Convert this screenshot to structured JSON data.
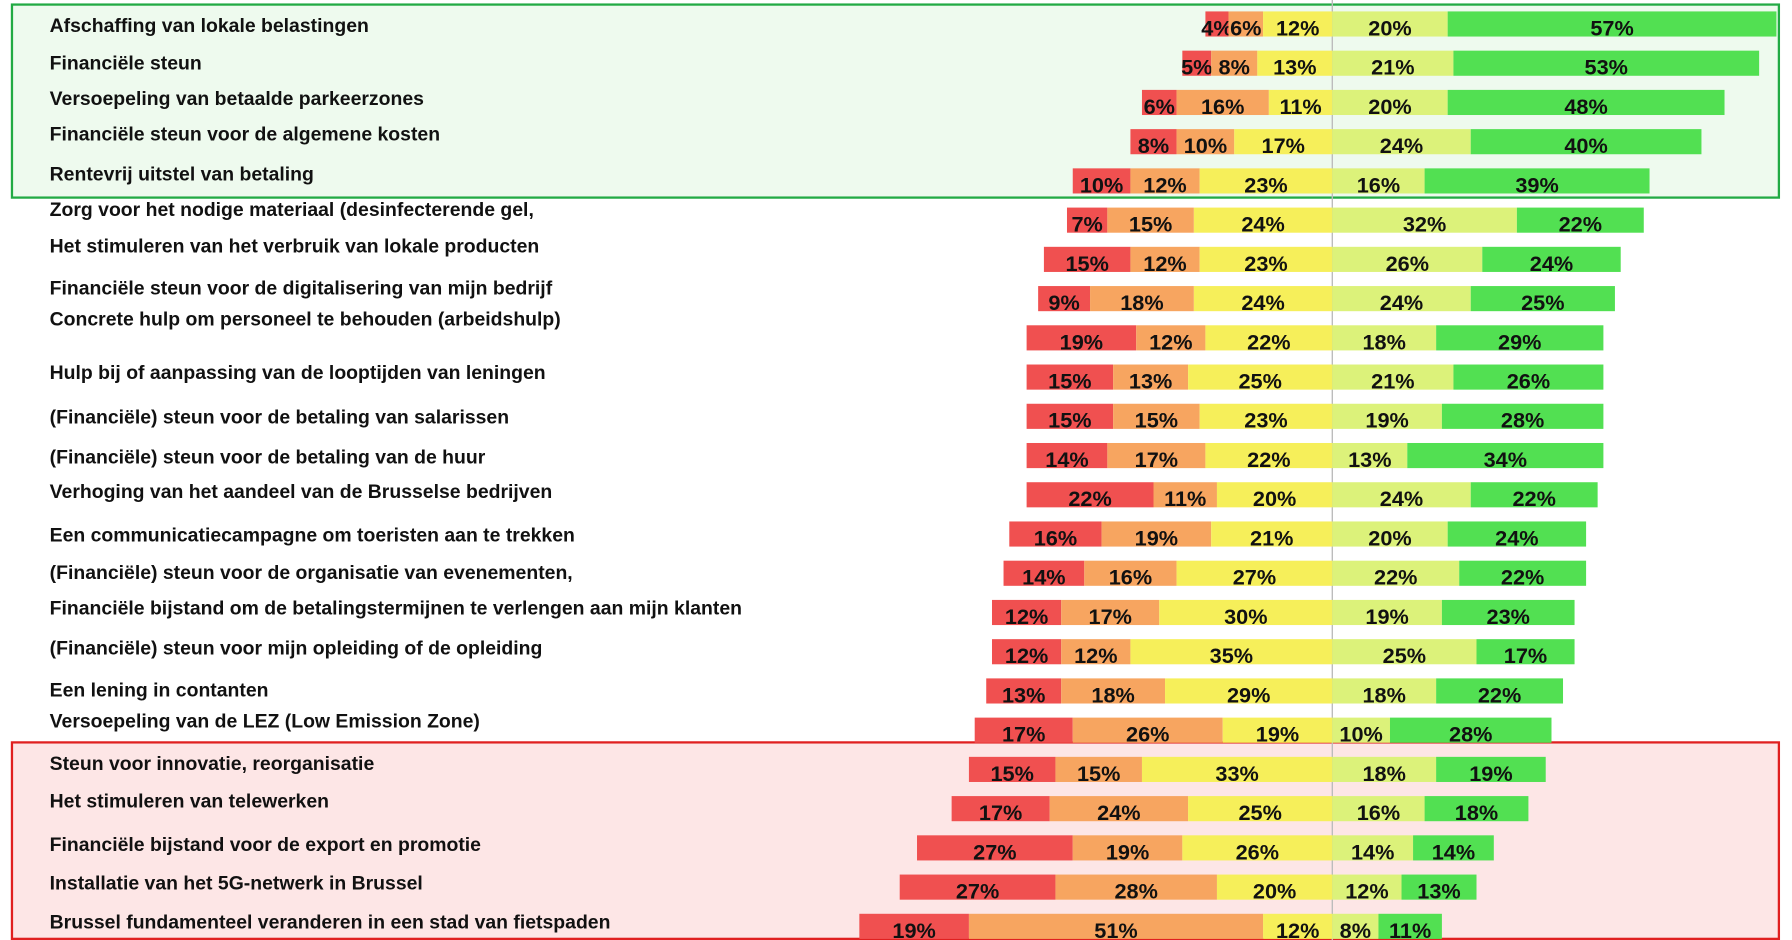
{
  "chart_data": {
    "type": "bar",
    "categories": [
      "Afschaffing van lokale belastingen",
      "Financiële steun",
      "Versoepeling van betaalde parkeerzones",
      "Financiële steun voor de algemene kosten",
      "Rentevrij uitstel van betaling",
      "Zorg voor het nodige materiaal (desinfecterende gel,",
      "Het stimuleren van het verbruik van lokale producten",
      "Financiële steun voor de digitalisering van mijn bedrijf",
      "Concrete hulp om personeel te behouden (arbeidshulp)",
      "Hulp bij of aanpassing van de looptijden van leningen",
      "(Financiële) steun voor de betaling van salarissen",
      "(Financiële) steun voor de betaling van de huur",
      "Verhoging van het aandeel van de Brusselse bedrijven",
      "Een communicatiecampagne om toeristen aan te trekken",
      "(Financiële) steun voor de organisatie van evenementen,",
      "Financiële bijstand om de betalingstermijnen te verlengen aan mijn klanten",
      "(Financiële) steun voor mijn opleiding of de opleiding",
      "Een lening in contanten",
      "Versoepeling van de LEZ (Low Emission Zone)",
      "Steun voor innovatie, reorganisatie",
      "Het stimuleren van telewerken",
      "Financiële bijstand voor de export en promotie",
      "Installatie van het 5G-netwerk in Brussel",
      "Brussel fundamenteel veranderen in een stad van fietspaden"
    ],
    "series": [
      {
        "color": "#f05050",
        "values": [
          4,
          5,
          6,
          8,
          10,
          7,
          15,
          9,
          19,
          15,
          15,
          14,
          22,
          16,
          14,
          12,
          12,
          13,
          17,
          15,
          17,
          27,
          27,
          19
        ],
        "value_labels": [
          "4%",
          "5%",
          "6%",
          "8%",
          "10%",
          "7%",
          "15%",
          "9%",
          "19%",
          "15%",
          "15%",
          "14%",
          "22%",
          "16%",
          "14%",
          "12%",
          "12%",
          "13%",
          "17%",
          "15%",
          "17%",
          "27%",
          "27%",
          "19%"
        ]
      },
      {
        "color": "#f7a560",
        "values": [
          6,
          8,
          16,
          10,
          12,
          15,
          12,
          18,
          12,
          13,
          15,
          17,
          11,
          19,
          16,
          17,
          12,
          18,
          26,
          15,
          24,
          19,
          28,
          51
        ],
        "value_labels": [
          "6%",
          "8%",
          "16%",
          "10%",
          "12%",
          "15%",
          "12%",
          "18%",
          "12%",
          "13%",
          "15%",
          "17%",
          "11%",
          "19%",
          "16%",
          "17%",
          "12%",
          "18%",
          "26%",
          "15%",
          "24%",
          "19%",
          "28%",
          "51%"
        ]
      },
      {
        "color": "#f6ef5a",
        "values": [
          12,
          13,
          11,
          17,
          23,
          24,
          23,
          24,
          22,
          25,
          23,
          22,
          20,
          21,
          27,
          30,
          35,
          29,
          19,
          33,
          25,
          26,
          20,
          12
        ],
        "value_labels": [
          "12%",
          "13%",
          "11%",
          "17%",
          "23%",
          "24%",
          "23%",
          "24%",
          "22%",
          "25%",
          "23%",
          "22%",
          "20%",
          "21%",
          "27%",
          "30%",
          "35%",
          "29%",
          "19%",
          "33%",
          "25%",
          "26%",
          "20%",
          "12%"
        ]
      },
      {
        "color": "#dcf27a",
        "values": [
          20,
          21,
          20,
          24,
          16,
          32,
          26,
          24,
          18,
          21,
          19,
          13,
          24,
          20,
          22,
          19,
          25,
          18,
          10,
          18,
          16,
          14,
          12,
          8
        ],
        "value_labels": [
          "20%",
          "21%",
          "20%",
          "24%",
          "16%",
          "32%",
          "26%",
          "24%",
          "18%",
          "21%",
          "19%",
          "13%",
          "24%",
          "20%",
          "22%",
          "19%",
          "25%",
          "18%",
          "10%",
          "18%",
          "16%",
          "14%",
          "12%",
          "8%"
        ]
      },
      {
        "color": "#52e052",
        "values": [
          57,
          53,
          48,
          40,
          39,
          22,
          24,
          25,
          29,
          26,
          28,
          34,
          22,
          24,
          22,
          23,
          17,
          22,
          28,
          19,
          18,
          14,
          13,
          11
        ],
        "value_labels": [
          "57%",
          "53%",
          "48%",
          "40%",
          "39%",
          "22%",
          "24%",
          "25%",
          "29%",
          "26%",
          "28%",
          "34%",
          "22%",
          "24%",
          "22%",
          "23%",
          "17%",
          "22%",
          "28%",
          "19%",
          "18%",
          "14%",
          "13%",
          "11%"
        ]
      }
    ]
  }
}
